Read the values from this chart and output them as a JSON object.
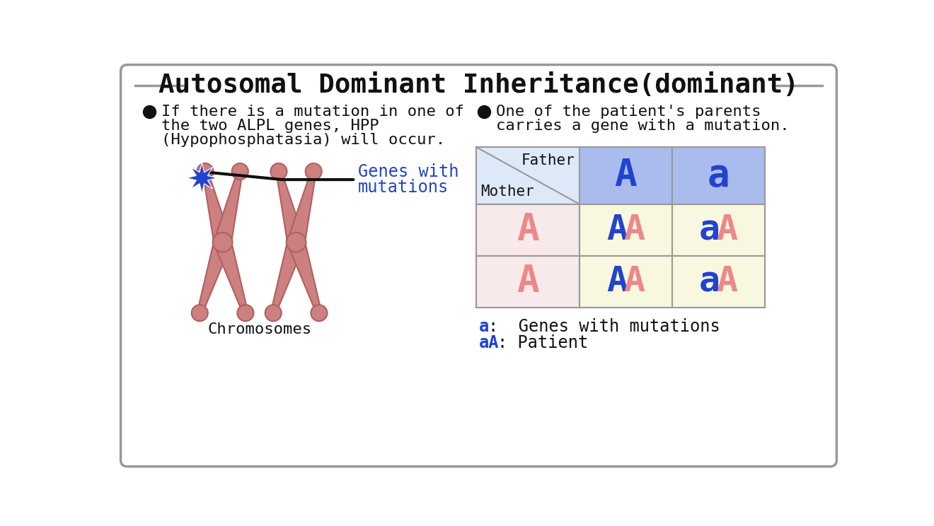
{
  "title": "Autosomal Dominant Inheritance(dominant)",
  "bg_color": "#ffffff",
  "border_color": "#999999",
  "bullet1_lines": [
    "If there is a mutation in one of",
    "the two ALPL genes, HPP",
    "(Hypophosphatasia) will occur."
  ],
  "bullet2_lines": [
    "One of the patient's parents",
    "carries a gene with a mutation."
  ],
  "genes_label_line1": "Genes with",
  "genes_label_line2": "mutations",
  "genes_label_color": "#2244cc",
  "chromosomes_label": "Chromosomes",
  "table_header_bg": "#aabbee",
  "table_header_corner_bg": "#dde8f8",
  "table_mother_bg": "#f8eaea",
  "table_data_bg": "#f8f8e0",
  "table_border": "#999999",
  "father_label": "Father",
  "mother_label": "Mother",
  "father_genes": [
    "A",
    "a"
  ],
  "mother_genes": [
    "A",
    "A"
  ],
  "table_cells": [
    [
      "AA",
      "aA"
    ],
    [
      "AA",
      "aA"
    ]
  ],
  "legend_line1_blue": "a",
  "legend_line1_rest": ":  Genes with mutations",
  "legend_line2_blue": "aA",
  "legend_line2_rest": ": Patient",
  "chrom_color": "#cc8080",
  "chrom_outline": "#b06060",
  "star_color": "#2244cc",
  "font_family": "monospace",
  "title_fontsize": 27,
  "body_fontsize": 16,
  "table_header_fontsize": 38,
  "table_cell_fontsize": 36,
  "blue_color": "#2244cc",
  "salmon_color": "#ee8888",
  "black_color": "#111111"
}
